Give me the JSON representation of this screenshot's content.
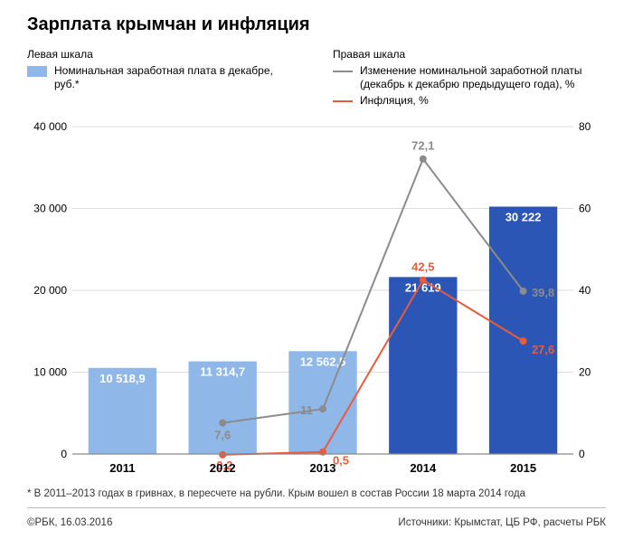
{
  "title": "Зарплата крымчан и инфляция",
  "legend_left": {
    "header": "Левая шкала",
    "item": "Номинальная заработная плата в декабре, руб.*",
    "swatch_color": "#8fb7e8"
  },
  "legend_right": {
    "header": "Правая шкала",
    "item1": "Изменение номинальной заработной платы (декабрь к декабрю предыдущего года), %",
    "item2": "Инфляция, %",
    "swatch1_color": "#8b8b8b",
    "swatch2_color": "#e85c3d"
  },
  "chart": {
    "type": "bar+line-dual-axis",
    "background_color": "#ffffff",
    "grid_color": "#dcdcdc",
    "axis_color": "#888888",
    "categories": [
      "2011",
      "2012",
      "2013",
      "2014",
      "2015"
    ],
    "left_axis": {
      "min": 0,
      "max": 40000,
      "step": 10000,
      "label_fontsize": 12
    },
    "right_axis": {
      "min": 0,
      "max": 80,
      "step": 20,
      "label_fontsize": 12
    },
    "bars": {
      "values": [
        10518.9,
        11314.7,
        12562.5,
        21619,
        30222
      ],
      "labels": [
        "10 518,9",
        "11 314,7",
        "12 562,5",
        "21 619",
        "30 222"
      ],
      "colors": [
        "#8fb7e8",
        "#8fb7e8",
        "#8fb7e8",
        "#2b56b5",
        "#2b56b5"
      ],
      "width_ratio": 0.68,
      "label_color": "#ffffff",
      "label_fontsize": 13
    },
    "series_wage_change": {
      "values": [
        null,
        7.6,
        11,
        72.1,
        39.8
      ],
      "labels": [
        null,
        "7,6",
        "11",
        "72,1",
        "39,8"
      ],
      "color": "#8b8b8b",
      "label_color": "#8b8b8b",
      "line_width": 2,
      "marker": "circle",
      "marker_size": 4
    },
    "series_inflation": {
      "values": [
        null,
        -0.2,
        0.5,
        42.5,
        27.6
      ],
      "labels": [
        null,
        "-0,2",
        "0,5",
        "42,5",
        "27,6"
      ],
      "color": "#e85c3d",
      "label_color": "#e85c3d",
      "line_width": 2,
      "marker": "circle",
      "marker_size": 4
    },
    "x_label_fontsize": 13,
    "x_label_fontweight": 700
  },
  "footnote": "* В 2011–2013 годах в гривнах, в пересчете на рубли. Крым вошел в состав России 18 марта 2014 года",
  "copyright": "©РБК, 16.03.2016",
  "sources": "Источники: Крымстат, ЦБ РФ, расчеты РБК"
}
